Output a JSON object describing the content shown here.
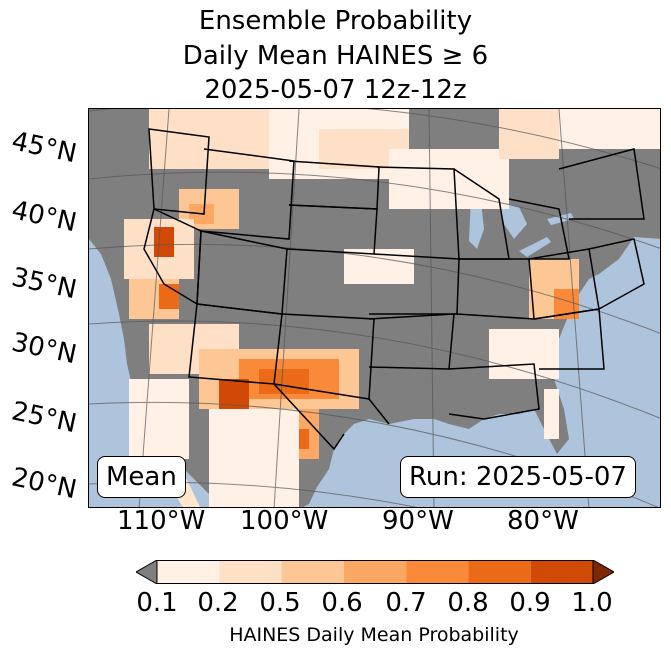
{
  "title": {
    "line1": "Ensemble Probability",
    "line2": "Daily Mean HAINES ≥ 6",
    "line3": "2025-05-07 12z-12z"
  },
  "map": {
    "lat_labels": [
      "45°N",
      "40°N",
      "35°N",
      "30°N",
      "25°N",
      "20°N"
    ],
    "lon_labels": [
      "110°W",
      "100°W",
      "90°W",
      "80°W"
    ],
    "mean_label": "Mean",
    "run_label": "Run: 2025-05-07",
    "colors": {
      "ocean": "#aec4dc",
      "land_low": "#7f7f7f",
      "lakes": "#aec4dc"
    }
  },
  "colorbar": {
    "ticks": [
      "0.1",
      "0.2",
      "0.5",
      "0.6",
      "0.7",
      "0.8",
      "0.9",
      "1.0"
    ],
    "colors": [
      "#fff1e6",
      "#fee0c7",
      "#fdc795",
      "#fca864",
      "#f98a3a",
      "#ea6a17",
      "#d14807",
      "#a13403"
    ],
    "under_color": "#7f7f7f",
    "over_color": "#7f2704",
    "label": "HAINES Daily Mean Probability"
  }
}
